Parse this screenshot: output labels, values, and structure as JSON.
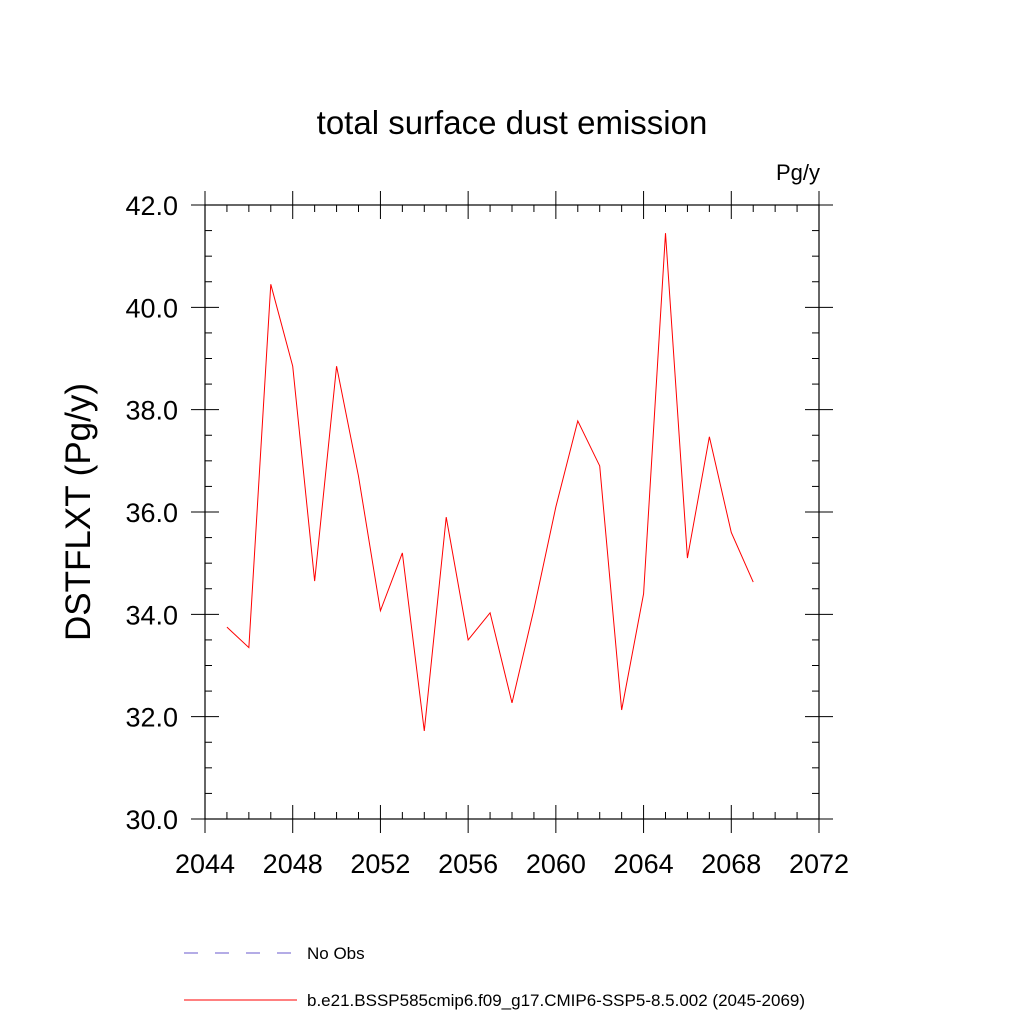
{
  "chart_data": {
    "type": "line",
    "title": "total surface dust emission",
    "units_label": "Pg/y",
    "ylabel": "DSTFLXT  (Pg/y)",
    "xlabel": "",
    "xlim": [
      2044,
      2072
    ],
    "ylim": [
      30.0,
      42.0
    ],
    "x_ticks": [
      2044,
      2048,
      2052,
      2056,
      2060,
      2064,
      2068,
      2072
    ],
    "x_tick_labels": [
      "2044",
      "2048",
      "2052",
      "2056",
      "2060",
      "2064",
      "2068",
      "2072"
    ],
    "y_ticks": [
      30,
      32,
      34,
      36,
      38,
      40,
      42
    ],
    "y_tick_labels": [
      "30.0",
      "32.0",
      "34.0",
      "36.0",
      "38.0",
      "40.0",
      "42.0"
    ],
    "grid": false,
    "legend_position": "bottom",
    "x": [
      2045,
      2046,
      2047,
      2048,
      2049,
      2050,
      2051,
      2052,
      2053,
      2054,
      2055,
      2056,
      2057,
      2058,
      2059,
      2060,
      2061,
      2062,
      2063,
      2064,
      2065,
      2066,
      2067,
      2068,
      2069
    ],
    "series": [
      {
        "name": "b.e21.BSSP585cmip6.f09_g17.CMIP6-SSP5-8.5.002 (2045-2069)",
        "color": "#ff0000",
        "style": "solid",
        "values": [
          33.75,
          33.35,
          40.45,
          38.85,
          34.65,
          38.85,
          36.7,
          34.07,
          35.2,
          31.72,
          35.9,
          33.5,
          34.03,
          32.27,
          34.1,
          36.1,
          37.78,
          36.9,
          32.13,
          34.4,
          41.45,
          35.1,
          37.47,
          35.6,
          34.63
        ]
      }
    ],
    "legend": [
      {
        "label": "No Obs",
        "color": "#6a5acd",
        "style": "dashed"
      },
      {
        "label": "b.e21.BSSP585cmip6.f09_g17.CMIP6-SSP5-8.5.002 (2045-2069)",
        "color": "#ff0000",
        "style": "solid"
      }
    ]
  }
}
